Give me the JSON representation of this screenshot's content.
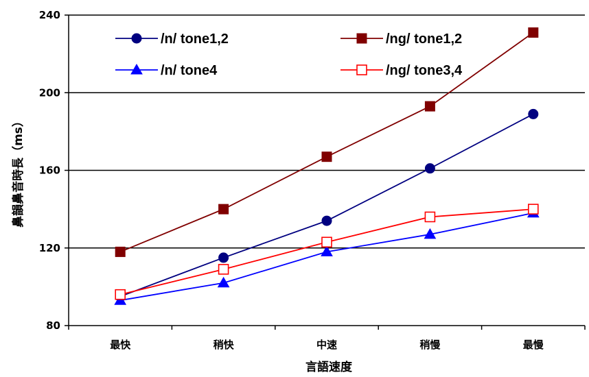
{
  "chart_data": {
    "type": "line",
    "title": "",
    "xlabel": "言語速度",
    "ylabel": "鼻韻鼻音時長（ms）",
    "categories": [
      "最快",
      "稍快",
      "中速",
      "稍慢",
      "最慢"
    ],
    "ylim": [
      80,
      240
    ],
    "yticks": [
      80,
      120,
      160,
      200,
      240
    ],
    "grid": "horizontal",
    "legend_position": "top-left, inside",
    "series": [
      {
        "name": "/n/ tone1,2",
        "values": [
          95,
          115,
          134,
          161,
          189
        ],
        "color": "#000080",
        "marker": "circle"
      },
      {
        "name": "/ng/ tone1,2",
        "values": [
          118,
          140,
          167,
          193,
          231
        ],
        "color": "#800000",
        "marker": "square"
      },
      {
        "name": "/n/ tone4",
        "values": [
          93,
          102,
          118,
          127,
          138
        ],
        "color": "#0000ff",
        "marker": "triangle"
      },
      {
        "name": "/ng/ tone3,4",
        "values": [
          96,
          109,
          123,
          136,
          140
        ],
        "color": "#ff0000",
        "marker": "open-square"
      }
    ]
  }
}
